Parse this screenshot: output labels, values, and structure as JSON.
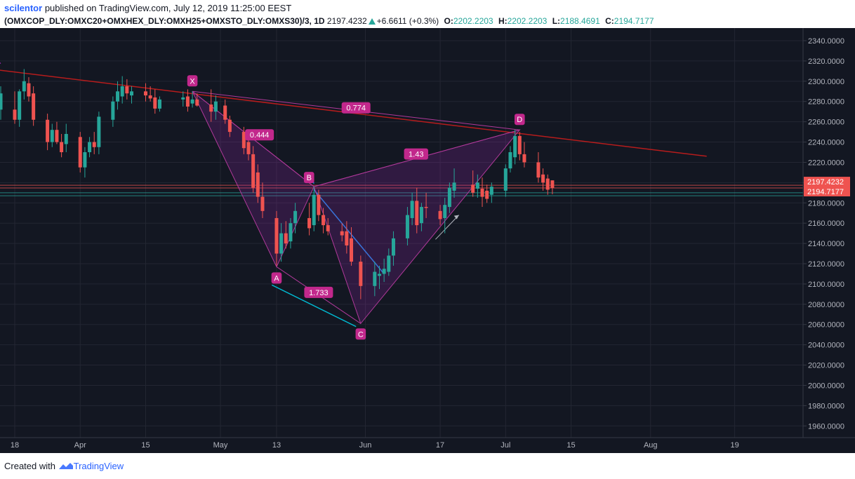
{
  "header": {
    "author": "scilentor",
    "published_text": "published on TradingView.com, July 12, 2019 11:25:00 EEST",
    "symbol": "(OMXCOP_DLY:OMXC20+OMXHEX_DLY:OMXH25+OMXSTO_DLY:OMXS30)/3, 1D",
    "last": "2197.4232",
    "change": "+6.6611 (+0.3%)",
    "o_label": "O:",
    "o_value": "2202.2203",
    "h_label": "H:",
    "h_value": "2202.2203",
    "l_label": "L:",
    "l_value": "2188.4691",
    "c_label": "C:",
    "c_value": "2194.7177"
  },
  "footer": {
    "created_with": "Created with",
    "brand": "TradingView"
  },
  "chart_data": {
    "type": "candlestick",
    "ylim": [
      1950,
      2350
    ],
    "y_ticks": [
      "2340.0000",
      "2320.0000",
      "2300.0000",
      "2280.0000",
      "2260.0000",
      "2240.0000",
      "2220.0000",
      "2200.0000",
      "2180.0000",
      "2160.0000",
      "2140.0000",
      "2120.0000",
      "2100.0000",
      "2080.0000",
      "2060.0000",
      "2040.0000",
      "2020.0000",
      "2000.0000",
      "1980.0000",
      "1960.0000"
    ],
    "x_ticks": [
      {
        "label": "18",
        "date": "2019-03-18"
      },
      {
        "label": "Apr",
        "date": "2019-04-01"
      },
      {
        "label": "15",
        "date": "2019-04-15"
      },
      {
        "label": "May",
        "date": "2019-05-01"
      },
      {
        "label": "13",
        "date": "2019-05-13"
      },
      {
        "label": "Jun",
        "date": "2019-06-01"
      },
      {
        "label": "17",
        "date": "2019-06-17"
      },
      {
        "label": "Jul",
        "date": "2019-07-01"
      },
      {
        "label": "15",
        "date": "2019-07-15"
      },
      {
        "label": "Aug",
        "date": "2019-08-01"
      },
      {
        "label": "19",
        "date": "2019-08-19"
      }
    ],
    "price_labels": [
      {
        "text": "2197.4232",
        "value": 2197.4232,
        "color": "#ef5350"
      },
      {
        "text": "2194.7177",
        "value": 2194.7177,
        "color": "#ef5350"
      }
    ],
    "hlines": [
      {
        "value": 2197.4232,
        "color": "#ef5350"
      },
      {
        "value": 2194.7177,
        "color": "#ef5350"
      },
      {
        "value": 2190,
        "color": "#26a69a"
      },
      {
        "value": 2187,
        "color": "#26a69a"
      }
    ],
    "up_color": "#26a69a",
    "down_color": "#ef5350",
    "candles": [
      {
        "d": "2019-03-13",
        "o": 2238,
        "h": 2262,
        "l": 2232,
        "c": 2258
      },
      {
        "d": "2019-03-14",
        "o": 2258,
        "h": 2278,
        "l": 2250,
        "c": 2272
      },
      {
        "d": "2019-03-15",
        "o": 2272,
        "h": 2295,
        "l": 2262,
        "c": 2288
      },
      {
        "d": "2019-03-18",
        "o": 2272,
        "h": 2290,
        "l": 2258,
        "c": 2262
      },
      {
        "d": "2019-03-19",
        "o": 2262,
        "h": 2292,
        "l": 2255,
        "c": 2290
      },
      {
        "d": "2019-03-20",
        "o": 2290,
        "h": 2312,
        "l": 2282,
        "c": 2300
      },
      {
        "d": "2019-03-21",
        "o": 2298,
        "h": 2304,
        "l": 2280,
        "c": 2285
      },
      {
        "d": "2019-03-22",
        "o": 2288,
        "h": 2295,
        "l": 2256,
        "c": 2262
      },
      {
        "d": "2019-03-25",
        "o": 2262,
        "h": 2268,
        "l": 2232,
        "c": 2240
      },
      {
        "d": "2019-03-26",
        "o": 2240,
        "h": 2258,
        "l": 2235,
        "c": 2252
      },
      {
        "d": "2019-03-27",
        "o": 2252,
        "h": 2260,
        "l": 2238,
        "c": 2240
      },
      {
        "d": "2019-03-28",
        "o": 2240,
        "h": 2248,
        "l": 2225,
        "c": 2230
      },
      {
        "d": "2019-03-29",
        "o": 2238,
        "h": 2258,
        "l": 2230,
        "c": 2248
      },
      {
        "d": "2019-04-01",
        "o": 2245,
        "h": 2250,
        "l": 2210,
        "c": 2215
      },
      {
        "d": "2019-04-02",
        "o": 2215,
        "h": 2235,
        "l": 2205,
        "c": 2230
      },
      {
        "d": "2019-04-03",
        "o": 2230,
        "h": 2245,
        "l": 2225,
        "c": 2240
      },
      {
        "d": "2019-04-04",
        "o": 2240,
        "h": 2250,
        "l": 2228,
        "c": 2235
      },
      {
        "d": "2019-04-05",
        "o": 2235,
        "h": 2270,
        "l": 2228,
        "c": 2265
      },
      {
        "d": "2019-04-08",
        "o": 2262,
        "h": 2285,
        "l": 2255,
        "c": 2280
      },
      {
        "d": "2019-04-09",
        "o": 2280,
        "h": 2300,
        "l": 2272,
        "c": 2290
      },
      {
        "d": "2019-04-10",
        "o": 2285,
        "h": 2305,
        "l": 2278,
        "c": 2295
      },
      {
        "d": "2019-04-11",
        "o": 2295,
        "h": 2302,
        "l": 2282,
        "c": 2288
      },
      {
        "d": "2019-04-12",
        "o": 2286,
        "h": 2295,
        "l": 2278,
        "c": 2290
      },
      {
        "d": "2019-04-15",
        "o": 2290,
        "h": 2298,
        "l": 2280,
        "c": 2286
      },
      {
        "d": "2019-04-16",
        "o": 2286,
        "h": 2295,
        "l": 2280,
        "c": 2283
      },
      {
        "d": "2019-04-17",
        "o": 2284,
        "h": 2292,
        "l": 2268,
        "c": 2273
      },
      {
        "d": "2019-04-18",
        "o": 2273,
        "h": 2285,
        "l": 2270,
        "c": 2282
      },
      {
        "d": "2019-04-23",
        "o": 2282,
        "h": 2290,
        "l": 2275,
        "c": 2284
      },
      {
        "d": "2019-04-24",
        "o": 2285,
        "h": 2292,
        "l": 2270,
        "c": 2275
      },
      {
        "d": "2019-04-25",
        "o": 2278,
        "h": 2290,
        "l": 2274,
        "c": 2282
      },
      {
        "d": "2019-04-26",
        "o": 2282,
        "h": 2288,
        "l": 2275,
        "c": 2276
      },
      {
        "d": "2019-04-29",
        "o": 2277,
        "h": 2292,
        "l": 2260,
        "c": 2270
      },
      {
        "d": "2019-04-30",
        "o": 2270,
        "h": 2286,
        "l": 2262,
        "c": 2280
      },
      {
        "d": "2019-05-02",
        "o": 2276,
        "h": 2282,
        "l": 2258,
        "c": 2262
      },
      {
        "d": "2019-05-03",
        "o": 2262,
        "h": 2266,
        "l": 2245,
        "c": 2250
      },
      {
        "d": "2019-05-06",
        "o": 2250,
        "h": 2255,
        "l": 2228,
        "c": 2234
      },
      {
        "d": "2019-05-07",
        "o": 2240,
        "h": 2250,
        "l": 2222,
        "c": 2228
      },
      {
        "d": "2019-05-08",
        "o": 2228,
        "h": 2236,
        "l": 2190,
        "c": 2195
      },
      {
        "d": "2019-05-09",
        "o": 2210,
        "h": 2218,
        "l": 2180,
        "c": 2186
      },
      {
        "d": "2019-05-10",
        "o": 2186,
        "h": 2200,
        "l": 2165,
        "c": 2172
      },
      {
        "d": "2019-05-13",
        "o": 2165,
        "h": 2172,
        "l": 2118,
        "c": 2130
      },
      {
        "d": "2019-05-14",
        "o": 2130,
        "h": 2160,
        "l": 2122,
        "c": 2150
      },
      {
        "d": "2019-05-15",
        "o": 2150,
        "h": 2162,
        "l": 2135,
        "c": 2140
      },
      {
        "d": "2019-05-16",
        "o": 2142,
        "h": 2165,
        "l": 2135,
        "c": 2160
      },
      {
        "d": "2019-05-17",
        "o": 2160,
        "h": 2180,
        "l": 2150,
        "c": 2172
      },
      {
        "d": "2019-05-20",
        "o": 2165,
        "h": 2180,
        "l": 2148,
        "c": 2155
      },
      {
        "d": "2019-05-21",
        "o": 2158,
        "h": 2196,
        "l": 2152,
        "c": 2188
      },
      {
        "d": "2019-05-22",
        "o": 2188,
        "h": 2193,
        "l": 2162,
        "c": 2168
      },
      {
        "d": "2019-05-23",
        "o": 2168,
        "h": 2175,
        "l": 2150,
        "c": 2158
      },
      {
        "d": "2019-05-24",
        "o": 2158,
        "h": 2165,
        "l": 2148,
        "c": 2152
      },
      {
        "d": "2019-05-27",
        "o": 2152,
        "h": 2160,
        "l": 2142,
        "c": 2148
      },
      {
        "d": "2019-05-28",
        "o": 2152,
        "h": 2162,
        "l": 2130,
        "c": 2138
      },
      {
        "d": "2019-05-29",
        "o": 2145,
        "h": 2156,
        "l": 2118,
        "c": 2122
      },
      {
        "d": "2019-05-31",
        "o": 2122,
        "h": 2128,
        "l": 2085,
        "c": 2098
      },
      {
        "d": "2019-06-03",
        "o": 2098,
        "h": 2122,
        "l": 2088,
        "c": 2112
      },
      {
        "d": "2019-06-04",
        "o": 2108,
        "h": 2118,
        "l": 2095,
        "c": 2110
      },
      {
        "d": "2019-06-05",
        "o": 2110,
        "h": 2125,
        "l": 2102,
        "c": 2115
      },
      {
        "d": "2019-06-06",
        "o": 2112,
        "h": 2135,
        "l": 2108,
        "c": 2128
      },
      {
        "d": "2019-06-07",
        "o": 2128,
        "h": 2152,
        "l": 2118,
        "c": 2145
      },
      {
        "d": "2019-06-10",
        "o": 2145,
        "h": 2176,
        "l": 2138,
        "c": 2168
      },
      {
        "d": "2019-06-11",
        "o": 2165,
        "h": 2190,
        "l": 2158,
        "c": 2182
      },
      {
        "d": "2019-06-12",
        "o": 2182,
        "h": 2195,
        "l": 2150,
        "c": 2158
      },
      {
        "d": "2019-06-13",
        "o": 2160,
        "h": 2180,
        "l": 2152,
        "c": 2176
      },
      {
        "d": "2019-06-14",
        "o": 2176,
        "h": 2190,
        "l": 2165,
        "c": 2175
      },
      {
        "d": "2019-06-17",
        "o": 2172,
        "h": 2178,
        "l": 2158,
        "c": 2164
      },
      {
        "d": "2019-06-18",
        "o": 2165,
        "h": 2185,
        "l": 2150,
        "c": 2178
      },
      {
        "d": "2019-06-19",
        "o": 2176,
        "h": 2200,
        "l": 2170,
        "c": 2195
      },
      {
        "d": "2019-06-20",
        "o": 2192,
        "h": 2214,
        "l": 2185,
        "c": 2200
      },
      {
        "d": "2019-06-24",
        "o": 2198,
        "h": 2212,
        "l": 2186,
        "c": 2190
      },
      {
        "d": "2019-06-25",
        "o": 2194,
        "h": 2208,
        "l": 2185,
        "c": 2200
      },
      {
        "d": "2019-06-26",
        "o": 2194,
        "h": 2205,
        "l": 2176,
        "c": 2186
      },
      {
        "d": "2019-06-27",
        "o": 2192,
        "h": 2198,
        "l": 2180,
        "c": 2184
      },
      {
        "d": "2019-06-28",
        "o": 2188,
        "h": 2200,
        "l": 2180,
        "c": 2196
      },
      {
        "d": "2019-07-01",
        "o": 2192,
        "h": 2218,
        "l": 2186,
        "c": 2214
      },
      {
        "d": "2019-07-02",
        "o": 2214,
        "h": 2236,
        "l": 2210,
        "c": 2230
      },
      {
        "d": "2019-07-03",
        "o": 2225,
        "h": 2252,
        "l": 2218,
        "c": 2246
      },
      {
        "d": "2019-07-04",
        "o": 2246,
        "h": 2250,
        "l": 2222,
        "c": 2228
      },
      {
        "d": "2019-07-05",
        "o": 2228,
        "h": 2240,
        "l": 2215,
        "c": 2220
      },
      {
        "d": "2019-07-08",
        "o": 2220,
        "h": 2230,
        "l": 2200,
        "c": 2205
      },
      {
        "d": "2019-07-09",
        "o": 2208,
        "h": 2214,
        "l": 2192,
        "c": 2200
      },
      {
        "d": "2019-07-10",
        "o": 2204,
        "h": 2208,
        "l": 2188,
        "c": 2193
      },
      {
        "d": "2019-07-11",
        "o": 2202.2203,
        "h": 2202.2203,
        "l": 2188.4691,
        "c": 2194.7177
      }
    ],
    "harmonic": {
      "points": {
        "X": {
          "d": "2019-04-25",
          "v": 2290
        },
        "A": {
          "d": "2019-05-13",
          "v": 2117
        },
        "B": {
          "d": "2019-05-21",
          "v": 2196
        },
        "C": {
          "d": "2019-05-31",
          "v": 2061
        },
        "D": {
          "d": "2019-07-04",
          "v": 2252
        }
      },
      "ratios": {
        "XB": "0.444",
        "AC": "1.733",
        "BD": "1.43",
        "XD": "0.774"
      }
    },
    "trendlines": [
      {
        "from": {
          "d": "2019-03-11",
          "v": 2313
        },
        "to": {
          "d": "2019-08-13",
          "v": 2226
        },
        "color": "#b71c1c"
      },
      {
        "from": {
          "d": "2019-03-11",
          "v": 2310
        },
        "to": {
          "d": "2019-03-15",
          "v": 2318
        },
        "color": "#9c27b0"
      },
      {
        "from": {
          "d": "2019-05-12",
          "v": 2099
        },
        "to": {
          "d": "2019-05-30",
          "v": 2058
        },
        "color": "#00bcd4"
      },
      {
        "from": {
          "d": "2019-05-21",
          "v": 2193
        },
        "to": {
          "d": "2019-06-05",
          "v": 2110
        },
        "color": "#1e88e5"
      },
      {
        "from": {
          "d": "2019-05-20",
          "v": 2210
        },
        "to": {
          "d": "2019-05-21",
          "v": 2199
        },
        "color": "#1e88e5"
      }
    ],
    "arrow": {
      "from": {
        "d": "2019-06-16",
        "v": 2144
      },
      "to": {
        "d": "2019-06-21",
        "v": 2168
      }
    }
  }
}
